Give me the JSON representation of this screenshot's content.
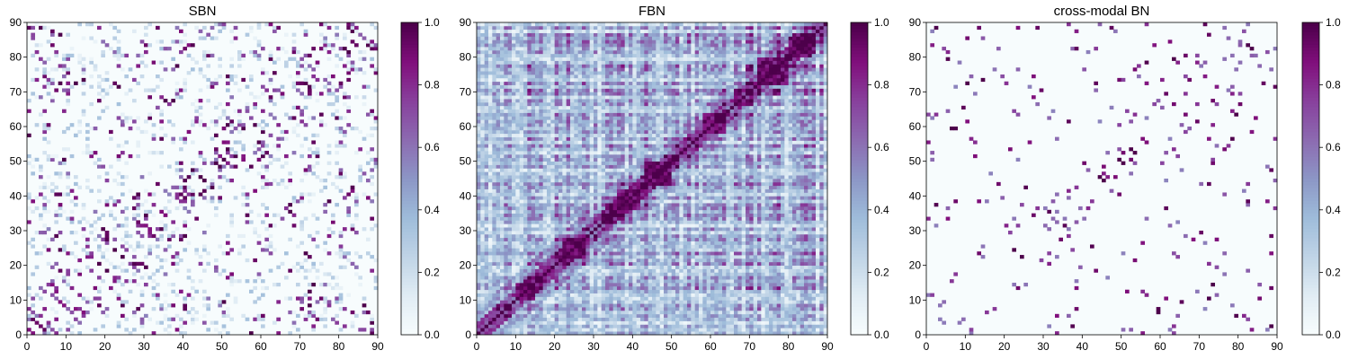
{
  "chart_data": [
    {
      "type": "heatmap",
      "title": "SBN",
      "xlim": [
        0,
        90
      ],
      "ylim": [
        0,
        90
      ],
      "xticks": [
        "0",
        "10",
        "20",
        "30",
        "40",
        "50",
        "60",
        "70",
        "80",
        "90"
      ],
      "yticks": [
        "0",
        "10",
        "20",
        "30",
        "40",
        "50",
        "60",
        "70",
        "80",
        "90"
      ],
      "grid_size": 90,
      "colormap": "BuPu",
      "colorbar": {
        "range": [
          0.0,
          1.0
        ],
        "ticks": [
          "0.0",
          "0.2",
          "0.4",
          "0.6",
          "0.8",
          "1.0"
        ]
      },
      "pattern": "sparse",
      "sample_values": [
        {
          "x": 45,
          "y": 44,
          "v": 1.0
        },
        {
          "x": 47,
          "y": 42,
          "v": 1.0
        },
        {
          "x": 48,
          "y": 49,
          "v": 1.0
        },
        {
          "x": 50,
          "y": 50,
          "v": 1.0
        },
        {
          "x": 51,
          "y": 53,
          "v": 1.0
        },
        {
          "x": 35,
          "y": 67,
          "v": 1.0
        },
        {
          "x": 37,
          "y": 67,
          "v": 1.0
        },
        {
          "x": 38,
          "y": 77,
          "v": 1.0
        },
        {
          "x": 82,
          "y": 81,
          "v": 1.0
        },
        {
          "x": 24,
          "y": 22,
          "v": 1.0
        },
        {
          "x": 20,
          "y": 18,
          "v": 1.0
        },
        {
          "x": 73,
          "y": 14,
          "v": 1.0
        },
        {
          "x": 8,
          "y": 72,
          "v": 1.0
        },
        {
          "x": 12,
          "y": 72,
          "v": 1.0
        },
        {
          "x": 23,
          "y": 71,
          "v": 1.0
        },
        {
          "x": 0,
          "y": 57,
          "v": 1.0
        },
        {
          "x": 57,
          "y": 0,
          "v": 1.0
        },
        {
          "x": 86,
          "y": 8,
          "v": 1.0
        }
      ]
    },
    {
      "type": "heatmap",
      "title": "FBN",
      "xlim": [
        0,
        90
      ],
      "ylim": [
        0,
        90
      ],
      "xticks": [
        "0",
        "10",
        "20",
        "30",
        "40",
        "50",
        "60",
        "70",
        "80",
        "90"
      ],
      "yticks": [
        "0",
        "10",
        "20",
        "30",
        "40",
        "50",
        "60",
        "70",
        "80",
        "90"
      ],
      "grid_size": 90,
      "colormap": "BuPu",
      "colorbar": {
        "range": [
          0.0,
          1.0
        ],
        "ticks": [
          "0.0",
          "0.2",
          "0.4",
          "0.6",
          "0.8",
          "1.0"
        ]
      },
      "pattern": "dense",
      "sample_values": [
        {
          "x": 45,
          "y": 46,
          "v": 1.0
        },
        {
          "x": 38,
          "y": 40,
          "v": 1.0
        },
        {
          "x": 25,
          "y": 26,
          "v": 1.0
        },
        {
          "x": 80,
          "y": 79,
          "v": 1.0
        },
        {
          "x": 76,
          "y": 74,
          "v": 0.9
        },
        {
          "x": 12,
          "y": 13,
          "v": 0.9
        },
        {
          "x": 60,
          "y": 62,
          "v": 0.8
        },
        {
          "x": 30,
          "y": 60,
          "v": 0.7
        },
        {
          "x": 5,
          "y": 85,
          "v": 0.6
        }
      ]
    },
    {
      "type": "heatmap",
      "title": "cross-modal BN",
      "xlim": [
        0,
        90
      ],
      "ylim": [
        0,
        90
      ],
      "xticks": [
        "0",
        "10",
        "20",
        "30",
        "40",
        "50",
        "60",
        "70",
        "80",
        "90"
      ],
      "yticks": [
        "0",
        "10",
        "20",
        "30",
        "40",
        "50",
        "60",
        "70",
        "80",
        "90"
      ],
      "grid_size": 90,
      "colormap": "BuPu",
      "colorbar": {
        "range": [
          0.0,
          1.0
        ],
        "ticks": [
          "0.0",
          "0.2",
          "0.4",
          "0.6",
          "0.8",
          "1.0"
        ]
      },
      "pattern": "very_sparse",
      "sample_values": [
        {
          "x": 45,
          "y": 44,
          "v": 1.0
        },
        {
          "x": 50,
          "y": 49,
          "v": 1.0
        },
        {
          "x": 53,
          "y": 52,
          "v": 1.0
        },
        {
          "x": 83,
          "y": 82,
          "v": 1.0
        },
        {
          "x": 24,
          "y": 22,
          "v": 1.0
        },
        {
          "x": 73,
          "y": 14,
          "v": 1.0
        },
        {
          "x": 10,
          "y": 72,
          "v": 1.0
        },
        {
          "x": 79,
          "y": 63,
          "v": 1.0
        },
        {
          "x": 2,
          "y": 88,
          "v": 1.0
        }
      ]
    }
  ]
}
